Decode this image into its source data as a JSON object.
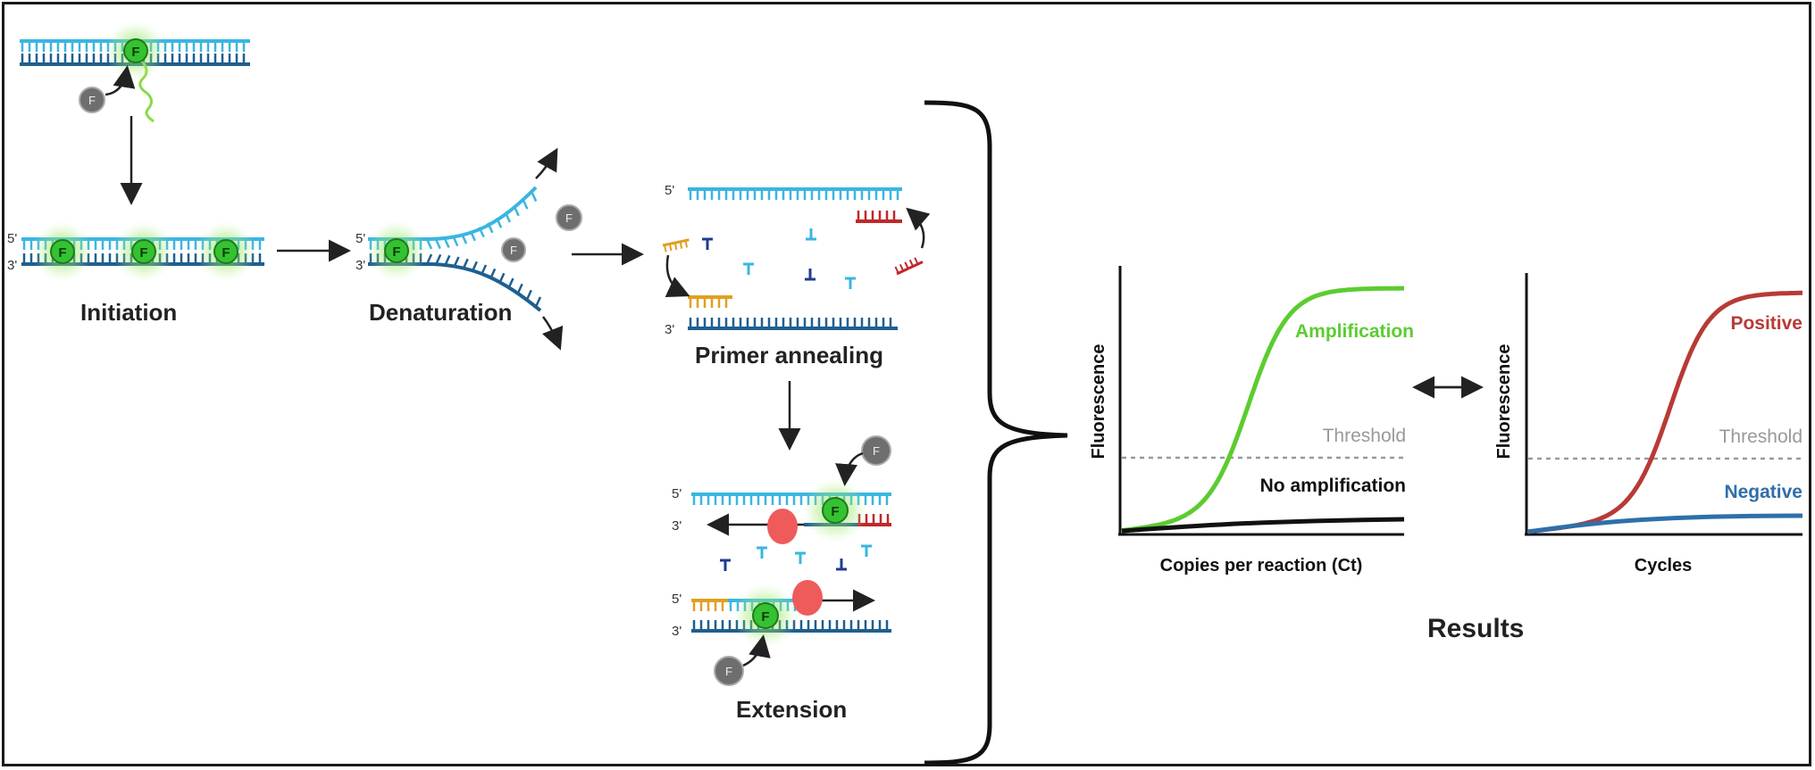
{
  "stages": {
    "initiation": "Initiation",
    "denaturation": "Denaturation",
    "primer_annealing": "Primer annealing",
    "extension": "Extension"
  },
  "marks": {
    "five_prime": "5'",
    "three_prime": "3'",
    "fluor": "F"
  },
  "results_title": "Results",
  "colors": {
    "strand_light": "#3ab6e0",
    "strand_dark": "#1f5f8f",
    "glow": "#7de04a",
    "fluor_fill": "#34c232",
    "quencher": "#6e6e6e",
    "primer_orange": "#e0a020",
    "primer_red": "#c0282a",
    "polymerase": "#ef5b5b",
    "amplification": "#5ccc30",
    "positive": "#b83a36",
    "negative": "#2f6faa",
    "threshold": "#999999"
  },
  "chart_data": [
    {
      "type": "line",
      "title": "",
      "xlabel": "Copies per reaction (Ct)",
      "ylabel": "Fluorescence",
      "threshold_label": "Threshold",
      "series": [
        {
          "name": "Amplification",
          "shape": "sigmoid"
        },
        {
          "name": "No amplification",
          "shape": "flat"
        }
      ]
    },
    {
      "type": "line",
      "title": "",
      "xlabel": "Cycles",
      "ylabel": "Fluorescence",
      "threshold_label": "Threshold",
      "series": [
        {
          "name": "Positive",
          "shape": "sigmoid"
        },
        {
          "name": "Negative",
          "shape": "flat"
        }
      ]
    }
  ]
}
